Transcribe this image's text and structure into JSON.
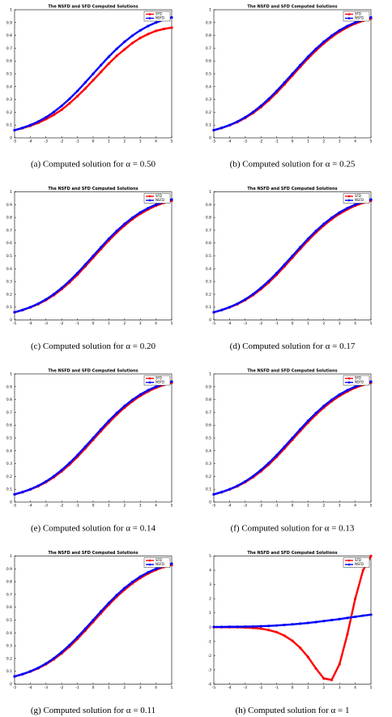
{
  "chart_data": [
    {
      "type": "line",
      "title": "The NSFD and SFD Computed Solutions",
      "caption": "(a) Computed solution for α = 0.50",
      "x": [
        -5,
        -4.5,
        -4,
        -3.5,
        -3,
        -2.5,
        -2,
        -1.5,
        -1,
        -0.5,
        0,
        0.5,
        1,
        1.5,
        2,
        2.5,
        3,
        3.5,
        4,
        4.5,
        5
      ],
      "series": [
        {
          "name": "SFD",
          "color": "#ff0000",
          "values": [
            0.06,
            0.075,
            0.094,
            0.117,
            0.146,
            0.18,
            0.22,
            0.27,
            0.325,
            0.385,
            0.45,
            0.515,
            0.58,
            0.64,
            0.69,
            0.74,
            0.78,
            0.81,
            0.835,
            0.85,
            0.86
          ]
        },
        {
          "name": "NSFD",
          "color": "#0000ff",
          "values": [
            0.06,
            0.078,
            0.1,
            0.127,
            0.161,
            0.202,
            0.25,
            0.305,
            0.366,
            0.432,
            0.5,
            0.568,
            0.634,
            0.695,
            0.75,
            0.798,
            0.839,
            0.873,
            0.9,
            0.922,
            0.94
          ]
        }
      ],
      "xlim": [
        -5,
        5
      ],
      "xticks": [
        -5,
        -4,
        -3,
        -2,
        -1,
        0,
        1,
        2,
        3,
        4,
        5
      ],
      "ylim": [
        0,
        1
      ],
      "yticks": [
        0,
        0.1,
        0.2,
        0.3,
        0.4,
        0.5,
        0.6,
        0.7,
        0.8,
        0.9,
        1
      ]
    },
    {
      "type": "line",
      "title": "The NSFD and SFD Computed Solutions",
      "caption": "(b) Computed solution for α = 0.25",
      "x": [
        -5,
        -4.5,
        -4,
        -3.5,
        -3,
        -2.5,
        -2,
        -1.5,
        -1,
        -0.5,
        0,
        0.5,
        1,
        1.5,
        2,
        2.5,
        3,
        3.5,
        4,
        4.5,
        5
      ],
      "series": [
        {
          "name": "SFD",
          "color": "#ff0000",
          "values": [
            0.06,
            0.077,
            0.098,
            0.123,
            0.155,
            0.194,
            0.24,
            0.293,
            0.353,
            0.418,
            0.486,
            0.554,
            0.62,
            0.682,
            0.737,
            0.786,
            0.828,
            0.863,
            0.892,
            0.914,
            0.93
          ]
        },
        {
          "name": "NSFD",
          "color": "#0000ff",
          "values": [
            0.06,
            0.078,
            0.1,
            0.127,
            0.161,
            0.202,
            0.25,
            0.305,
            0.366,
            0.432,
            0.5,
            0.568,
            0.634,
            0.695,
            0.75,
            0.798,
            0.839,
            0.873,
            0.9,
            0.922,
            0.94
          ]
        }
      ],
      "xlim": [
        -5,
        5
      ],
      "xticks": [
        -5,
        -4,
        -3,
        -2,
        -1,
        0,
        1,
        2,
        3,
        4,
        5
      ],
      "ylim": [
        0,
        1
      ],
      "yticks": [
        0,
        0.1,
        0.2,
        0.3,
        0.4,
        0.5,
        0.6,
        0.7,
        0.8,
        0.9,
        1
      ]
    },
    {
      "type": "line",
      "title": "The NSFD and SFD Computed Solutions",
      "caption": "(c) Computed solution for α = 0.20",
      "x": [
        -5,
        -4.5,
        -4,
        -3.5,
        -3,
        -2.5,
        -2,
        -1.5,
        -1,
        -0.5,
        0,
        0.5,
        1,
        1.5,
        2,
        2.5,
        3,
        3.5,
        4,
        4.5,
        5
      ],
      "series": [
        {
          "name": "SFD",
          "color": "#ff0000",
          "values": [
            0.06,
            0.077,
            0.098,
            0.123,
            0.155,
            0.194,
            0.24,
            0.293,
            0.353,
            0.418,
            0.486,
            0.554,
            0.62,
            0.682,
            0.737,
            0.786,
            0.828,
            0.863,
            0.892,
            0.914,
            0.93
          ]
        },
        {
          "name": "NSFD",
          "color": "#0000ff",
          "values": [
            0.06,
            0.078,
            0.1,
            0.127,
            0.161,
            0.202,
            0.25,
            0.305,
            0.366,
            0.432,
            0.5,
            0.568,
            0.634,
            0.695,
            0.75,
            0.798,
            0.839,
            0.873,
            0.9,
            0.922,
            0.94
          ]
        }
      ],
      "xlim": [
        -5,
        5
      ],
      "xticks": [
        -5,
        -4,
        -3,
        -2,
        -1,
        0,
        1,
        2,
        3,
        4,
        5
      ],
      "ylim": [
        0,
        1
      ],
      "yticks": [
        0,
        0.1,
        0.2,
        0.3,
        0.4,
        0.5,
        0.6,
        0.7,
        0.8,
        0.9,
        1
      ]
    },
    {
      "type": "line",
      "title": "The NSFD and SFD Computed Solutions",
      "caption": "(d) Computed solution for α = 0.17",
      "x": [
        -5,
        -4.5,
        -4,
        -3.5,
        -3,
        -2.5,
        -2,
        -1.5,
        -1,
        -0.5,
        0,
        0.5,
        1,
        1.5,
        2,
        2.5,
        3,
        3.5,
        4,
        4.5,
        5
      ],
      "series": [
        {
          "name": "SFD",
          "color": "#ff0000",
          "values": [
            0.06,
            0.077,
            0.098,
            0.123,
            0.155,
            0.194,
            0.24,
            0.293,
            0.353,
            0.418,
            0.486,
            0.554,
            0.62,
            0.682,
            0.737,
            0.786,
            0.828,
            0.863,
            0.892,
            0.914,
            0.93
          ]
        },
        {
          "name": "NSFD",
          "color": "#0000ff",
          "values": [
            0.06,
            0.078,
            0.1,
            0.127,
            0.161,
            0.202,
            0.25,
            0.305,
            0.366,
            0.432,
            0.5,
            0.568,
            0.634,
            0.695,
            0.75,
            0.798,
            0.839,
            0.873,
            0.9,
            0.922,
            0.94
          ]
        }
      ],
      "xlim": [
        -5,
        5
      ],
      "xticks": [
        -5,
        -4,
        -3,
        -2,
        -1,
        0,
        1,
        2,
        3,
        4,
        5
      ],
      "ylim": [
        0,
        1
      ],
      "yticks": [
        0,
        0.1,
        0.2,
        0.3,
        0.4,
        0.5,
        0.6,
        0.7,
        0.8,
        0.9,
        1
      ]
    },
    {
      "type": "line",
      "title": "The NSFD and SFD Computed Solutions",
      "caption": "(e) Computed solution for α = 0.14",
      "x": [
        -5,
        -4.5,
        -4,
        -3.5,
        -3,
        -2.5,
        -2,
        -1.5,
        -1,
        -0.5,
        0,
        0.5,
        1,
        1.5,
        2,
        2.5,
        3,
        3.5,
        4,
        4.5,
        5
      ],
      "series": [
        {
          "name": "SFD",
          "color": "#ff0000",
          "values": [
            0.06,
            0.077,
            0.098,
            0.123,
            0.155,
            0.194,
            0.24,
            0.293,
            0.353,
            0.418,
            0.486,
            0.554,
            0.62,
            0.682,
            0.737,
            0.786,
            0.828,
            0.863,
            0.892,
            0.914,
            0.93
          ]
        },
        {
          "name": "NSFD",
          "color": "#0000ff",
          "values": [
            0.06,
            0.078,
            0.1,
            0.127,
            0.161,
            0.202,
            0.25,
            0.305,
            0.366,
            0.432,
            0.5,
            0.568,
            0.634,
            0.695,
            0.75,
            0.798,
            0.839,
            0.873,
            0.9,
            0.922,
            0.94
          ]
        }
      ],
      "xlim": [
        -5,
        5
      ],
      "xticks": [
        -5,
        -4,
        -3,
        -2,
        -1,
        0,
        1,
        2,
        3,
        4,
        5
      ],
      "ylim": [
        0,
        1
      ],
      "yticks": [
        0,
        0.1,
        0.2,
        0.3,
        0.4,
        0.5,
        0.6,
        0.7,
        0.8,
        0.9,
        1
      ]
    },
    {
      "type": "line",
      "title": "The NSFD and SFD Computed Solutions",
      "caption": "(f) Computed solution for α = 0.13",
      "x": [
        -5,
        -4.5,
        -4,
        -3.5,
        -3,
        -2.5,
        -2,
        -1.5,
        -1,
        -0.5,
        0,
        0.5,
        1,
        1.5,
        2,
        2.5,
        3,
        3.5,
        4,
        4.5,
        5
      ],
      "series": [
        {
          "name": "SFD",
          "color": "#ff0000",
          "values": [
            0.06,
            0.077,
            0.098,
            0.123,
            0.155,
            0.194,
            0.24,
            0.293,
            0.353,
            0.418,
            0.486,
            0.554,
            0.62,
            0.682,
            0.737,
            0.786,
            0.828,
            0.863,
            0.892,
            0.914,
            0.93
          ]
        },
        {
          "name": "NSFD",
          "color": "#0000ff",
          "values": [
            0.06,
            0.078,
            0.1,
            0.127,
            0.161,
            0.202,
            0.25,
            0.305,
            0.366,
            0.432,
            0.5,
            0.568,
            0.634,
            0.695,
            0.75,
            0.798,
            0.839,
            0.873,
            0.9,
            0.922,
            0.94
          ]
        }
      ],
      "xlim": [
        -5,
        5
      ],
      "xticks": [
        -5,
        -4,
        -3,
        -2,
        -1,
        0,
        1,
        2,
        3,
        4,
        5
      ],
      "ylim": [
        0,
        1
      ],
      "yticks": [
        0,
        0.1,
        0.2,
        0.3,
        0.4,
        0.5,
        0.6,
        0.7,
        0.8,
        0.9,
        1
      ]
    },
    {
      "type": "line",
      "title": "The NSFD and SFD Computed Solutions",
      "caption": "(g) Computed solution for α = 0.11",
      "x": [
        -5,
        -4.5,
        -4,
        -3.5,
        -3,
        -2.5,
        -2,
        -1.5,
        -1,
        -0.5,
        0,
        0.5,
        1,
        1.5,
        2,
        2.5,
        3,
        3.5,
        4,
        4.5,
        5
      ],
      "series": [
        {
          "name": "SFD",
          "color": "#ff0000",
          "values": [
            0.06,
            0.077,
            0.098,
            0.123,
            0.155,
            0.194,
            0.24,
            0.293,
            0.353,
            0.418,
            0.486,
            0.554,
            0.62,
            0.682,
            0.737,
            0.786,
            0.828,
            0.863,
            0.892,
            0.914,
            0.93
          ]
        },
        {
          "name": "NSFD",
          "color": "#0000ff",
          "values": [
            0.06,
            0.078,
            0.1,
            0.127,
            0.161,
            0.202,
            0.25,
            0.305,
            0.366,
            0.432,
            0.5,
            0.568,
            0.634,
            0.695,
            0.75,
            0.798,
            0.839,
            0.873,
            0.9,
            0.922,
            0.94
          ]
        }
      ],
      "xlim": [
        -5,
        5
      ],
      "xticks": [
        -5,
        -4,
        -3,
        -2,
        -1,
        0,
        1,
        2,
        3,
        4,
        5
      ],
      "ylim": [
        0,
        1
      ],
      "yticks": [
        0,
        0.1,
        0.2,
        0.3,
        0.4,
        0.5,
        0.6,
        0.7,
        0.8,
        0.9,
        1
      ]
    },
    {
      "type": "line",
      "title": "The NSFD and SFD Computed Solutions",
      "caption": "(h) Computed solution for α = 1",
      "x": [
        -5,
        -4.5,
        -4,
        -3.5,
        -3,
        -2.5,
        -2,
        -1.5,
        -1,
        -0.5,
        0,
        0.5,
        1,
        1.5,
        2,
        2.5,
        3,
        3.5,
        4,
        4.5,
        5
      ],
      "series": [
        {
          "name": "SFD",
          "color": "#ff0000",
          "values": [
            0,
            0,
            0,
            0,
            -0.02,
            -0.05,
            -0.1,
            -0.2,
            -0.35,
            -0.6,
            -0.95,
            -1.45,
            -2.1,
            -2.9,
            -3.6,
            -3.7,
            -2.6,
            -0.5,
            2,
            4,
            5
          ]
        },
        {
          "name": "NSFD",
          "color": "#0000ff",
          "values": [
            0.02,
            0.02,
            0.03,
            0.03,
            0.04,
            0.05,
            0.07,
            0.09,
            0.12,
            0.16,
            0.2,
            0.25,
            0.3,
            0.36,
            0.43,
            0.5,
            0.57,
            0.65,
            0.73,
            0.81,
            0.88
          ]
        }
      ],
      "xlim": [
        -5,
        5
      ],
      "xticks": [
        -5,
        -4,
        -3,
        -2,
        -1,
        0,
        1,
        2,
        3,
        4,
        5
      ],
      "ylim": [
        -4,
        5
      ],
      "yticks": [
        -4,
        -3,
        -2,
        -1,
        0,
        1,
        2,
        3,
        4,
        5
      ]
    }
  ]
}
